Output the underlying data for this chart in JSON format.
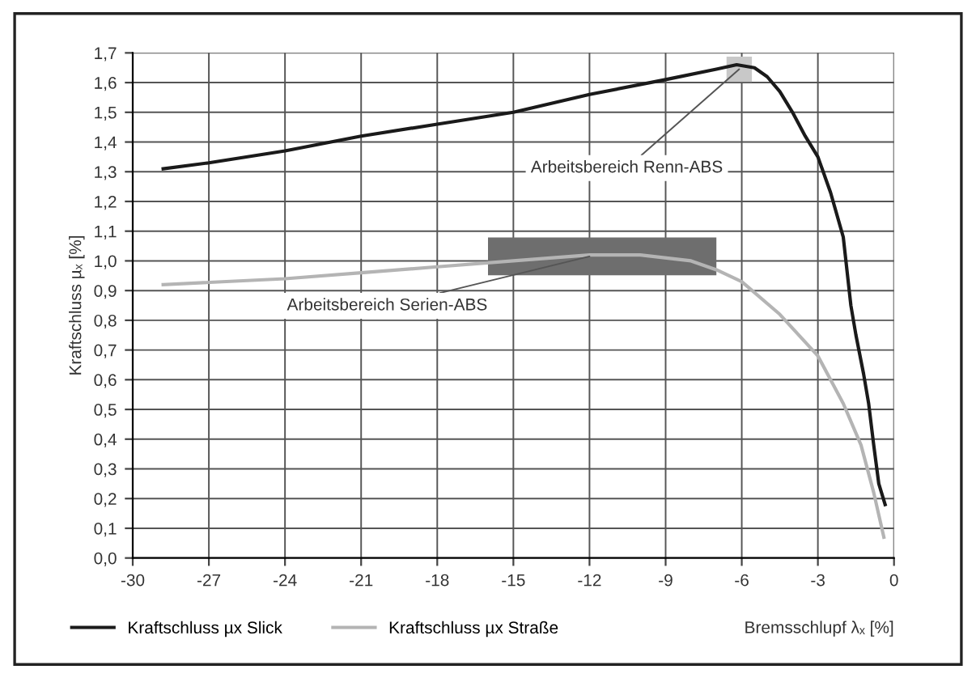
{
  "chart_data": {
    "type": "line",
    "xlabel": "Bremsschlupf λₓ [%]",
    "ylabel": "Kraftschluss µₓ [%]",
    "series": [
      {
        "name": "Kraftschluss µx Slick",
        "color": "#1a1a1a",
        "x": [
          -28.8,
          -27,
          -24,
          -21,
          -18,
          -15,
          -12,
          -9,
          -7,
          -6.2,
          -5.5,
          -5,
          -4.5,
          -4,
          -3.5,
          -3,
          -2.5,
          -2,
          -1.7,
          -1.5,
          -1.2,
          -1.0,
          -0.8,
          -0.6,
          -0.35
        ],
        "values": [
          1.31,
          1.33,
          1.37,
          1.42,
          1.46,
          1.5,
          1.56,
          1.61,
          1.645,
          1.66,
          1.65,
          1.62,
          1.57,
          1.5,
          1.42,
          1.35,
          1.23,
          1.08,
          0.85,
          0.75,
          0.62,
          0.52,
          0.38,
          0.25,
          0.18
        ]
      },
      {
        "name": "Kraftschluss µx Straße",
        "color": "#b4b4b4",
        "x": [
          -28.8,
          -24,
          -21,
          -18,
          -15,
          -12,
          -10,
          -8,
          -7,
          -6,
          -4.5,
          -3,
          -2,
          -1.3,
          -0.8,
          -0.4
        ],
        "values": [
          0.92,
          0.94,
          0.96,
          0.98,
          1.0,
          1.02,
          1.02,
          1.0,
          0.97,
          0.93,
          0.82,
          0.68,
          0.52,
          0.38,
          0.22,
          0.07
        ]
      }
    ],
    "bands": [
      {
        "axis": "x",
        "from": -6.6,
        "to": -5.6,
        "color": "#c8c8c8"
      },
      {
        "axis": "x",
        "from": -16,
        "to": -7,
        "color": "#6e6e6e"
      }
    ],
    "annotations": [
      {
        "text": "Arbeitsbereich Renn-ABS",
        "x": -6.1,
        "y": 1.645
      },
      {
        "text": "Arbeitsbereich Serien-ABS",
        "x": -12,
        "y": 1.015
      }
    ],
    "xlim": [
      -30,
      0
    ],
    "xticks": [
      -30,
      -27,
      -24,
      -21,
      -18,
      -15,
      -12,
      -9,
      -6,
      -3,
      0
    ],
    "ylim": [
      0,
      1.7
    ],
    "yticks": [
      {
        "value": 0,
        "label": "0,0"
      },
      {
        "value": 0.1,
        "label": "0,1"
      },
      {
        "value": 0.2,
        "label": "0,2"
      },
      {
        "value": 0.3,
        "label": "0,3"
      },
      {
        "value": 0.4,
        "label": "0,4"
      },
      {
        "value": 0.5,
        "label": "0,5"
      },
      {
        "value": 0.6,
        "label": "0,6"
      },
      {
        "value": 0.7,
        "label": "0,7"
      },
      {
        "value": 0.8,
        "label": "0,8"
      },
      {
        "value": 0.9,
        "label": "0,9"
      },
      {
        "value": 1.0,
        "label": "1,0"
      },
      {
        "value": 1.1,
        "label": "1,1"
      },
      {
        "value": 1.2,
        "label": "1,2"
      },
      {
        "value": 1.3,
        "label": "1,3"
      },
      {
        "value": 1.4,
        "label": "1,4"
      },
      {
        "value": 1.5,
        "label": "1,5"
      },
      {
        "value": 1.6,
        "label": "1,6"
      },
      {
        "value": 1.7,
        "label": "1,7"
      }
    ],
    "grid": true,
    "legend": "bottom"
  }
}
